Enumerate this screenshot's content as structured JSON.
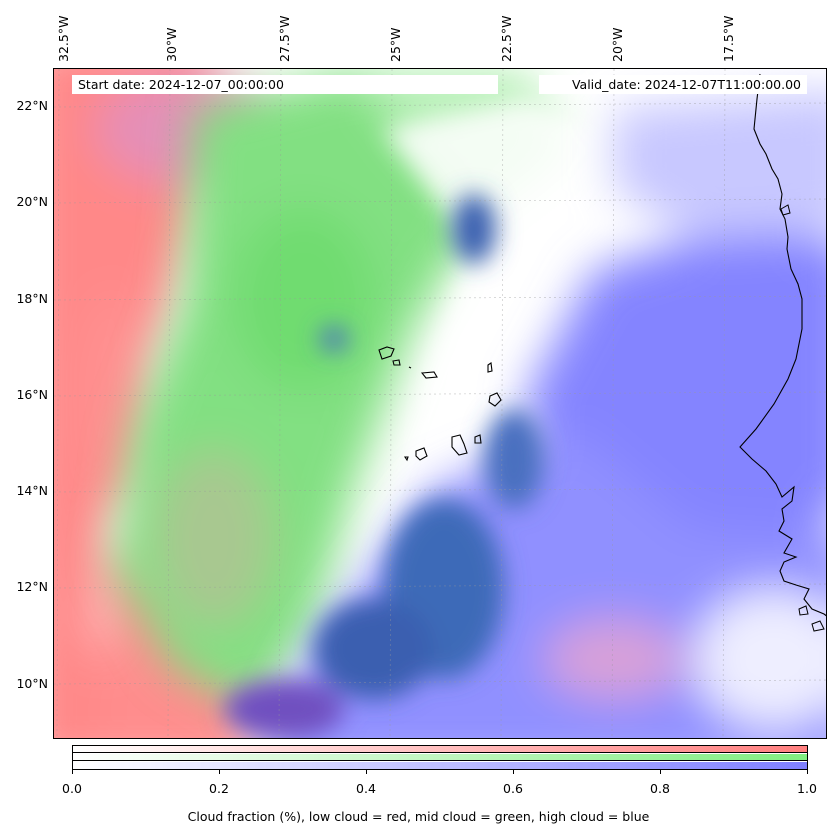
{
  "header": {
    "start_date": "Start date: 2024-12-07_00:00:00",
    "valid_date": "Valid_date: 2024-12-07T11:00:00.00"
  },
  "axes": {
    "lon_labels": [
      "32.5°W",
      "30°W",
      "27.5°W",
      "25°W",
      "22.5°W",
      "20°W",
      "17.5°W"
    ],
    "lat_labels": [
      "22°N",
      "20°N",
      "18°N",
      "16°N",
      "14°N",
      "12°N",
      "10°N"
    ]
  },
  "colorbar": {
    "tick_labels": [
      "0.0",
      "0.2",
      "0.4",
      "0.6",
      "0.8",
      "1.0"
    ],
    "caption": "Cloud fraction (%), low cloud = red, mid cloud = green, high cloud = blue",
    "colors": {
      "low": "#ff7f7f",
      "mid": "#80ee80",
      "high": "#7f7fff"
    }
  },
  "map_colors": {
    "low_cloud": "#ff8a8a",
    "mid_cloud": "#7ee07e",
    "high_cloud": "#8888ff",
    "deep_cloud": "#3a6ab8",
    "clear": "#ffffff",
    "coastline": "#000000"
  }
}
